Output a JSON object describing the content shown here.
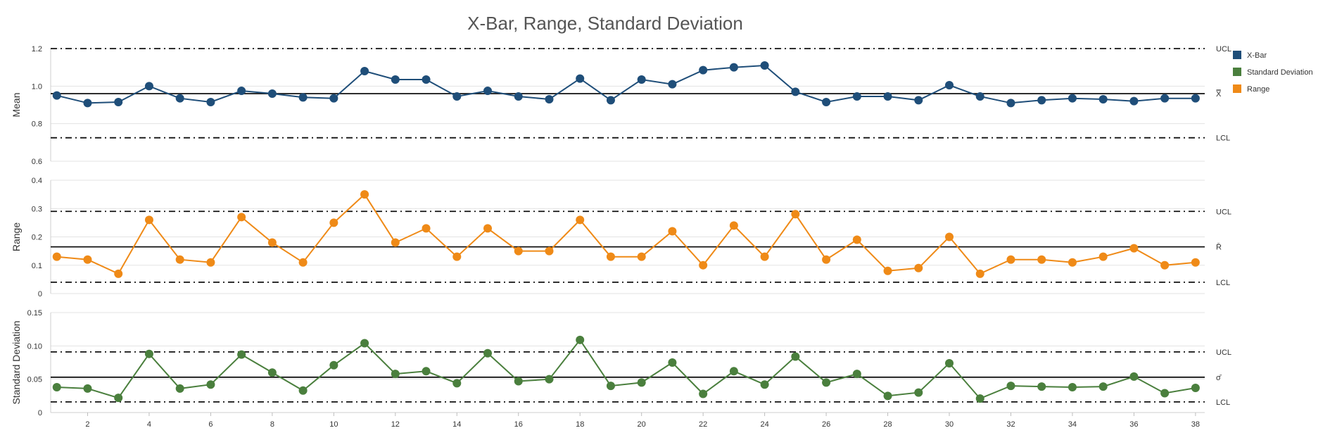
{
  "chart_data": {
    "type": "line",
    "title": "X-Bar, Range, Standard Deviation",
    "xlabel": "",
    "x": [
      1,
      2,
      3,
      4,
      5,
      6,
      7,
      8,
      9,
      10,
      11,
      12,
      13,
      14,
      15,
      16,
      17,
      18,
      19,
      20,
      21,
      22,
      23,
      24,
      25,
      26,
      27,
      28,
      29,
      30,
      31,
      32,
      33,
      34,
      35,
      36,
      37,
      38
    ],
    "x_tick_labels": [
      "2",
      "4",
      "6",
      "8",
      "10",
      "12",
      "14",
      "16",
      "18",
      "20",
      "22",
      "24",
      "26",
      "28",
      "30",
      "32",
      "34",
      "36",
      "38"
    ],
    "grid": true,
    "legend_position": "top-right",
    "legend": [
      {
        "label": "X-Bar",
        "color": "#1f4e79"
      },
      {
        "label": "Standard Deviation",
        "color": "#4a7f3d"
      },
      {
        "label": "Range",
        "color": "#ef8a17"
      }
    ],
    "panels": [
      {
        "ylabel": "Mean",
        "ylim": [
          0.6,
          1.2
        ],
        "yticks": [
          "0.6",
          "0.8",
          "1.0",
          "1.2"
        ],
        "series_name": "X-Bar",
        "color": "#1f4e79",
        "values": [
          0.95,
          0.91,
          0.915,
          1.0,
          0.935,
          0.915,
          0.975,
          0.96,
          0.94,
          0.935,
          1.08,
          1.035,
          1.035,
          0.945,
          0.975,
          0.945,
          0.93,
          1.04,
          0.925,
          1.035,
          1.01,
          1.085,
          1.1,
          1.11,
          0.97,
          0.915,
          0.945,
          0.945,
          0.925,
          1.005,
          0.945,
          0.91,
          0.925,
          0.935,
          0.93,
          0.92,
          0.935,
          0.935
        ],
        "ucl": 1.2,
        "center": 0.96,
        "lcl": 0.725,
        "ucl_label": "UCL",
        "center_label": "X̿",
        "lcl_label": "LCL"
      },
      {
        "ylabel": "Range",
        "ylim": [
          0,
          0.4
        ],
        "yticks": [
          "0",
          "0.1",
          "0.2",
          "0.3",
          "0.4"
        ],
        "series_name": "Range",
        "color": "#ef8a17",
        "values": [
          0.13,
          0.12,
          0.07,
          0.26,
          0.12,
          0.11,
          0.27,
          0.18,
          0.11,
          0.25,
          0.35,
          0.18,
          0.23,
          0.13,
          0.23,
          0.15,
          0.15,
          0.26,
          0.13,
          0.13,
          0.22,
          0.1,
          0.24,
          0.13,
          0.28,
          0.12,
          0.19,
          0.08,
          0.09,
          0.2,
          0.07,
          0.12,
          0.12,
          0.11,
          0.13,
          0.16,
          0.1,
          0.11
        ],
        "ucl": 0.29,
        "center": 0.165,
        "lcl": 0.04,
        "ucl_label": "UCL",
        "center_label": "R̄",
        "lcl_label": "LCL"
      },
      {
        "ylabel": "Standard Deviation",
        "ylim": [
          0,
          0.15
        ],
        "yticks": [
          "0",
          "0.05",
          "0.10",
          "0.15"
        ],
        "series_name": "Standard Deviation",
        "color": "#4a7f3d",
        "values": [
          0.038,
          0.036,
          0.022,
          0.088,
          0.036,
          0.042,
          0.087,
          0.06,
          0.033,
          0.071,
          0.104,
          0.058,
          0.062,
          0.044,
          0.089,
          0.047,
          0.05,
          0.109,
          0.04,
          0.045,
          0.075,
          0.028,
          0.062,
          0.042,
          0.084,
          0.045,
          0.058,
          0.025,
          0.03,
          0.074,
          0.021,
          0.04,
          0.039,
          0.038,
          0.039,
          0.054,
          0.029,
          0.037
        ],
        "ucl": 0.091,
        "center": 0.053,
        "lcl": 0.016,
        "ucl_label": "UCL",
        "center_label": "σ̄",
        "lcl_label": "LCL"
      }
    ]
  }
}
